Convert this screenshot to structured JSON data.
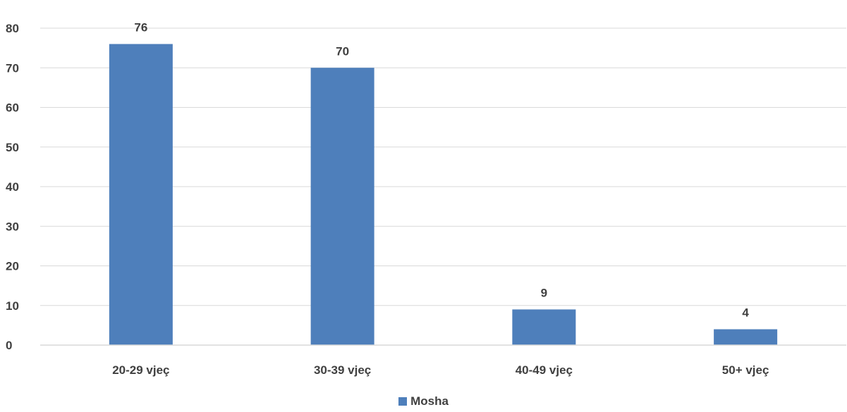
{
  "chart_data": {
    "type": "bar",
    "title": "",
    "xlabel": "",
    "ylabel": "",
    "categories": [
      "20-29 vjeç",
      "30-39 vjeç",
      "40-49 vjeç",
      "50+ vjeç"
    ],
    "series": [
      {
        "name": "Mosha",
        "values": [
          76,
          70,
          9,
          4
        ],
        "color": "#4e7fbb"
      }
    ],
    "ylim": [
      0,
      80
    ],
    "yticks": [
      "0",
      "10",
      "20",
      "30",
      "40",
      "50",
      "60",
      "70",
      "80"
    ],
    "data_labels": [
      "76",
      "70",
      "9",
      "4"
    ],
    "grid": true,
    "legend_position": "bottom"
  }
}
